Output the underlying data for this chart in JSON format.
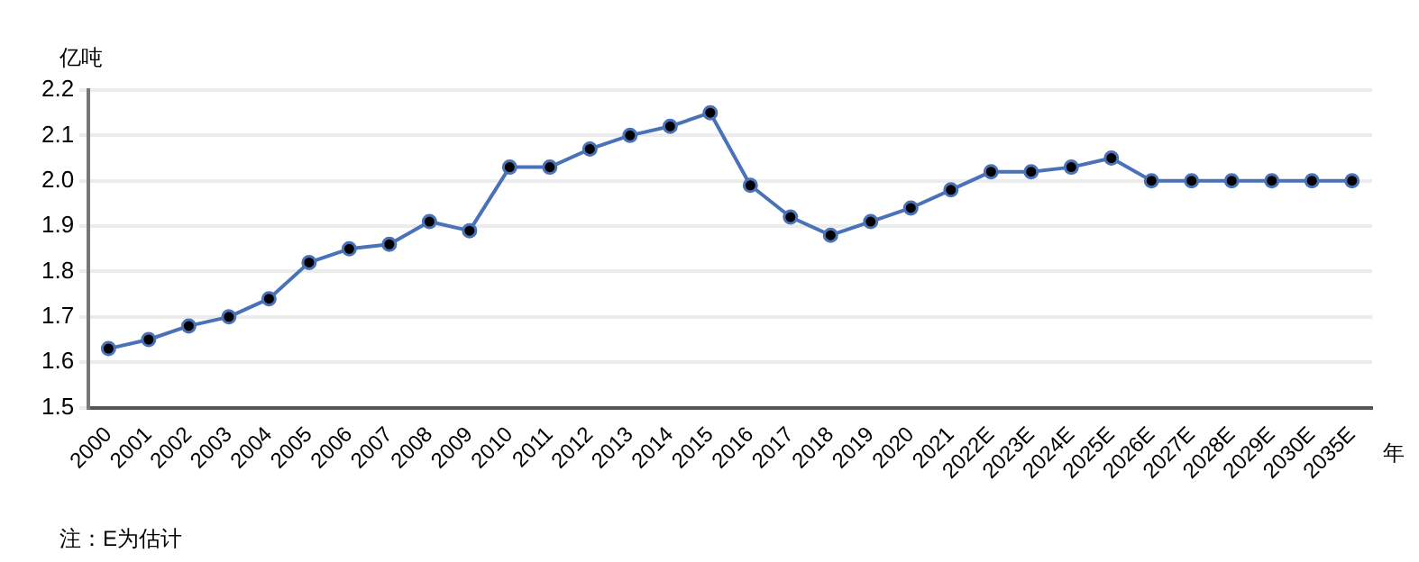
{
  "chart_data": {
    "type": "line",
    "ylabel": "亿吨",
    "xlabel": "年",
    "annotations": [
      "注：E为估计"
    ],
    "categories": [
      "2000",
      "2001",
      "2002",
      "2003",
      "2004",
      "2005",
      "2006",
      "2007",
      "2008",
      "2009",
      "2010",
      "2011",
      "2012",
      "2013",
      "2014",
      "2015",
      "2016",
      "2017",
      "2018",
      "2019",
      "2020",
      "2021",
      "2022E",
      "2023E",
      "2024E",
      "2025E",
      "2026E",
      "2027E",
      "2028E",
      "2029E",
      "2030E",
      "2035E"
    ],
    "series": [
      {
        "color": "#4a72b8",
        "values": [
          1.63,
          1.65,
          1.68,
          1.7,
          1.74,
          1.82,
          1.85,
          1.86,
          1.91,
          1.89,
          2.03,
          2.03,
          2.07,
          2.1,
          2.12,
          2.15,
          1.99,
          1.92,
          1.88,
          1.91,
          1.94,
          1.98,
          2.02,
          2.02,
          2.03,
          2.05,
          2.0,
          2.0,
          2.0,
          2.0,
          2.0,
          2.0
        ]
      }
    ],
    "ylim": [
      1.5,
      2.2
    ],
    "yticks": [
      1.5,
      1.6,
      1.7,
      1.8,
      1.9,
      {
        "value": 2,
        "label": "2.0"
      },
      2.1,
      2.2
    ],
    "grid": "y",
    "marker": "circle",
    "line_style": "solid",
    "legend": false
  }
}
